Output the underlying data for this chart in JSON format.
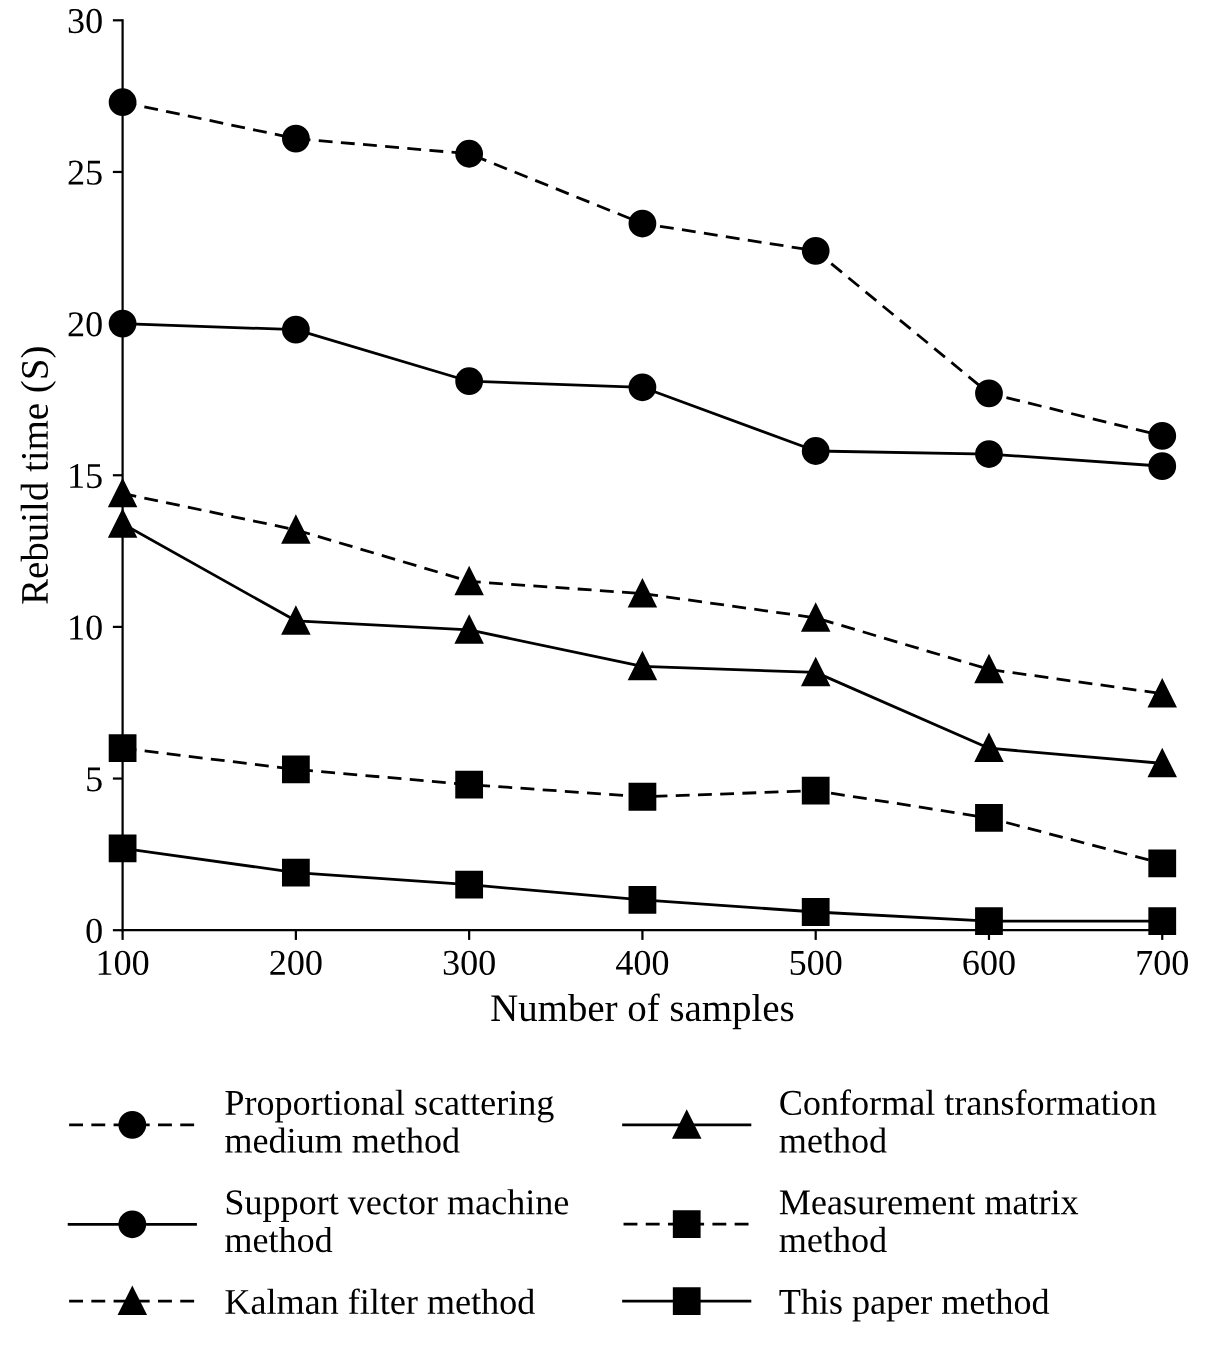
{
  "chart_data": {
    "type": "line",
    "xlabel": "Number of samples",
    "ylabel": "Rebuild time (S)",
    "x": [
      100,
      200,
      300,
      400,
      500,
      600,
      700
    ],
    "xlim": [
      100,
      700
    ],
    "xticks": [
      100,
      200,
      300,
      400,
      500,
      600,
      700
    ],
    "ylim": [
      0,
      30
    ],
    "yticks": [
      0,
      5,
      10,
      15,
      20,
      25,
      30
    ],
    "grid": false,
    "legend": "bottom",
    "series": [
      {
        "name": "Proportional scattering\nmedium method",
        "color": "#000000",
        "marker": "circle",
        "line_style": "dashed",
        "values": [
          27.3,
          26.1,
          25.6,
          23.3,
          22.4,
          17.7,
          16.3
        ]
      },
      {
        "name": "Support vector machine\nmethod",
        "color": "#000000",
        "marker": "circle",
        "line_style": "solid",
        "values": [
          20.0,
          19.8,
          18.1,
          17.9,
          15.8,
          15.7,
          15.3
        ]
      },
      {
        "name": "Kalman filter method",
        "color": "#000000",
        "marker": "triangle",
        "line_style": "dashed",
        "values": [
          14.4,
          13.2,
          11.5,
          11.1,
          10.3,
          8.6,
          7.8
        ]
      },
      {
        "name": "Conformal transformation\nmethod",
        "color": "#000000",
        "marker": "triangle",
        "line_style": "solid",
        "values": [
          13.4,
          10.2,
          9.9,
          8.7,
          8.5,
          6.0,
          5.5
        ]
      },
      {
        "name": "Measurement matrix\nmethod",
        "color": "#000000",
        "marker": "square",
        "line_style": "dashed",
        "values": [
          6.0,
          5.3,
          4.8,
          4.4,
          4.6,
          3.7,
          2.2
        ]
      },
      {
        "name": "This paper method",
        "color": "#000000",
        "marker": "square",
        "line_style": "solid",
        "values": [
          2.7,
          1.9,
          1.5,
          1.0,
          0.6,
          0.3,
          0.3
        ]
      }
    ]
  }
}
